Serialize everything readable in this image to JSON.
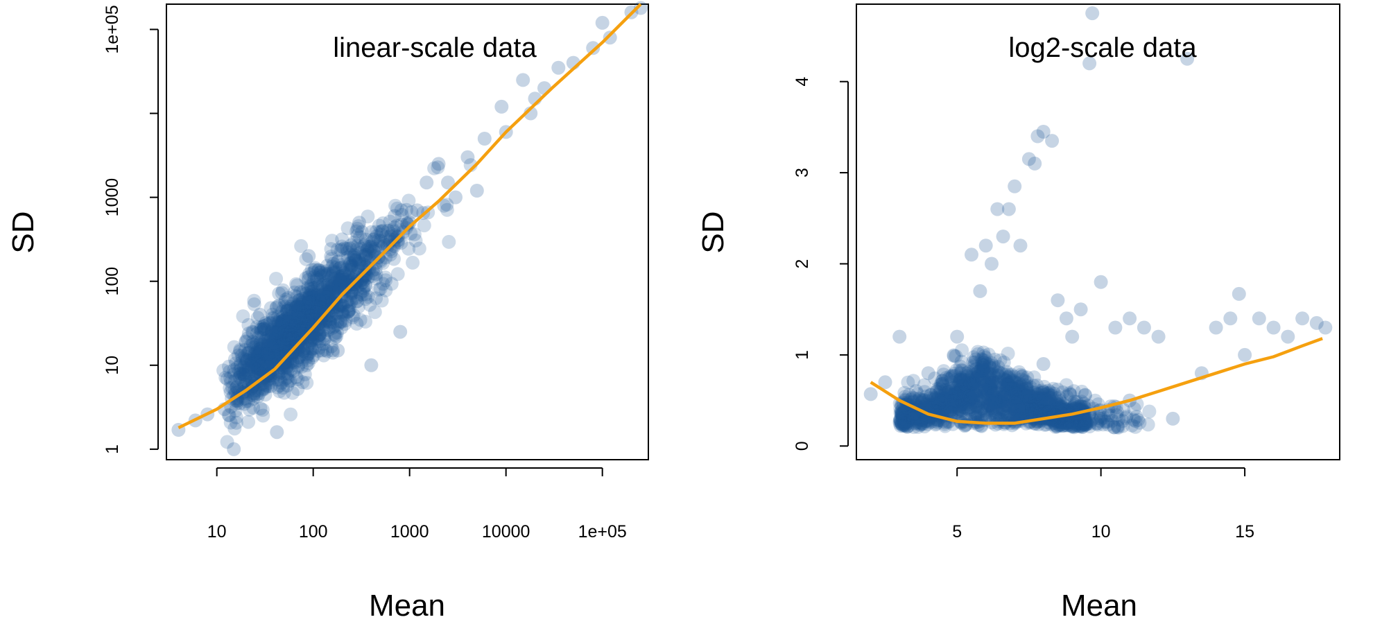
{
  "chart_data": [
    {
      "type": "scatter",
      "title": "linear-scale data",
      "xlabel": "Mean",
      "ylabel": "SD",
      "x_scale": "log10",
      "y_scale": "log10",
      "xlim": [
        3,
        300000
      ],
      "ylim": [
        0.75,
        200000
      ],
      "x_ticks": [
        {
          "value": 10,
          "label": "10"
        },
        {
          "value": 100,
          "label": "100"
        },
        {
          "value": 1000,
          "label": "1000"
        },
        {
          "value": 10000,
          "label": "10000"
        },
        {
          "value": 100000,
          "label": "1e+05"
        }
      ],
      "y_ticks": [
        {
          "value": 1,
          "label": "1"
        },
        {
          "value": 10,
          "label": "10"
        },
        {
          "value": 100,
          "label": "100"
        },
        {
          "value": 1000,
          "label": "1000"
        },
        {
          "value": 10000,
          "label": ""
        },
        {
          "value": 100000,
          "label": "1e+05"
        }
      ],
      "grid": false,
      "point_color": "#1a5594",
      "trend_color": "#f5a00f",
      "points": [
        [
          4,
          1.7
        ],
        [
          6,
          2.2
        ],
        [
          8,
          2.6
        ],
        [
          12,
          3
        ],
        [
          15,
          1
        ],
        [
          16,
          3.5
        ],
        [
          20,
          4
        ],
        [
          25,
          5
        ],
        [
          28,
          40
        ],
        [
          30,
          6
        ],
        [
          35,
          8
        ],
        [
          40,
          10
        ],
        [
          42,
          1.6
        ],
        [
          50,
          12
        ],
        [
          55,
          25
        ],
        [
          60,
          15
        ],
        [
          70,
          18
        ],
        [
          80,
          30
        ],
        [
          90,
          200
        ],
        [
          100,
          25
        ],
        [
          120,
          40
        ],
        [
          150,
          60
        ],
        [
          180,
          15
        ],
        [
          200,
          80
        ],
        [
          250,
          100
        ],
        [
          300,
          500
        ],
        [
          350,
          150
        ],
        [
          400,
          10
        ],
        [
          500,
          300
        ],
        [
          600,
          400
        ],
        [
          700,
          600
        ],
        [
          800,
          25
        ],
        [
          1000,
          500
        ],
        [
          1200,
          700
        ],
        [
          1500,
          1500
        ],
        [
          2000,
          2500
        ],
        [
          2500,
          1500
        ],
        [
          3000,
          1000
        ],
        [
          4000,
          3000
        ],
        [
          5000,
          1200
        ],
        [
          6000,
          5000
        ],
        [
          9000,
          12000
        ],
        [
          10000,
          6000
        ],
        [
          15000,
          25000
        ],
        [
          18000,
          10000
        ],
        [
          20000,
          15000
        ],
        [
          25000,
          20000
        ],
        [
          35000,
          35000
        ],
        [
          50000,
          40000
        ],
        [
          80000,
          60000
        ],
        [
          100000,
          120000
        ],
        [
          120000,
          80000
        ],
        [
          200000,
          160000
        ],
        [
          250000,
          180000
        ]
      ],
      "trend": [
        [
          4,
          1.8
        ],
        [
          10,
          3
        ],
        [
          20,
          5
        ],
        [
          40,
          9
        ],
        [
          70,
          18
        ],
        [
          100,
          28
        ],
        [
          200,
          70
        ],
        [
          500,
          200
        ],
        [
          1000,
          450
        ],
        [
          2000,
          900
        ],
        [
          5000,
          2500
        ],
        [
          10000,
          6000
        ],
        [
          30000,
          20000
        ],
        [
          100000,
          70000
        ],
        [
          250000,
          200000
        ]
      ]
    },
    {
      "type": "scatter",
      "title": "log2-scale data",
      "xlabel": "Mean",
      "ylabel": "SD",
      "x_scale": "linear",
      "y_scale": "linear",
      "xlim": [
        1.5,
        18.3
      ],
      "ylim": [
        -0.15,
        4.85
      ],
      "x_ticks": [
        {
          "value": 5,
          "label": "5"
        },
        {
          "value": 10,
          "label": "10"
        },
        {
          "value": 15,
          "label": "15"
        }
      ],
      "y_ticks": [
        {
          "value": 0,
          "label": "0"
        },
        {
          "value": 1,
          "label": "1"
        },
        {
          "value": 2,
          "label": "2"
        },
        {
          "value": 3,
          "label": "3"
        },
        {
          "value": 4,
          "label": "4"
        }
      ],
      "grid": false,
      "point_color": "#1a5594",
      "trend_color": "#f5a00f",
      "points": [
        [
          2,
          0.57
        ],
        [
          2.5,
          0.7
        ],
        [
          3,
          1.2
        ],
        [
          3.2,
          0.5
        ],
        [
          4,
          0.8
        ],
        [
          5,
          1.2
        ],
        [
          5.5,
          2.1
        ],
        [
          5.8,
          1.7
        ],
        [
          6,
          2.2
        ],
        [
          6.2,
          2.0
        ],
        [
          6.4,
          2.6
        ],
        [
          6.6,
          2.3
        ],
        [
          6.8,
          2.6
        ],
        [
          7,
          2.85
        ],
        [
          7.2,
          2.2
        ],
        [
          7.5,
          3.15
        ],
        [
          7.7,
          3.1
        ],
        [
          7.8,
          3.4
        ],
        [
          8,
          3.45
        ],
        [
          8.3,
          3.35
        ],
        [
          8.5,
          1.6
        ],
        [
          8.8,
          1.4
        ],
        [
          9,
          1.2
        ],
        [
          9.3,
          1.5
        ],
        [
          9.6,
          4.2
        ],
        [
          9.7,
          4.75
        ],
        [
          10,
          1.8
        ],
        [
          10.5,
          1.3
        ],
        [
          11,
          1.4
        ],
        [
          11.5,
          1.3
        ],
        [
          12,
          1.2
        ],
        [
          12.5,
          0.3
        ],
        [
          13,
          4.25
        ],
        [
          13.5,
          0.8
        ],
        [
          14,
          1.3
        ],
        [
          14.5,
          1.4
        ],
        [
          14.8,
          1.67
        ],
        [
          15,
          1.0
        ],
        [
          15.5,
          1.4
        ],
        [
          16,
          1.3
        ],
        [
          16.5,
          1.2
        ],
        [
          17,
          1.4
        ],
        [
          17.5,
          1.35
        ],
        [
          17.8,
          1.3
        ],
        [
          6.5,
          0.3
        ],
        [
          7,
          0.7
        ],
        [
          8,
          0.9
        ],
        [
          9,
          0.4
        ],
        [
          10,
          0.3
        ],
        [
          11,
          0.5
        ]
      ],
      "trend": [
        [
          2,
          0.7
        ],
        [
          3,
          0.5
        ],
        [
          4,
          0.35
        ],
        [
          5,
          0.27
        ],
        [
          6,
          0.25
        ],
        [
          7,
          0.25
        ],
        [
          8,
          0.3
        ],
        [
          9,
          0.35
        ],
        [
          10,
          0.42
        ],
        [
          11,
          0.5
        ],
        [
          12,
          0.6
        ],
        [
          13,
          0.7
        ],
        [
          14,
          0.8
        ],
        [
          15,
          0.9
        ],
        [
          16,
          0.98
        ],
        [
          17,
          1.1
        ],
        [
          17.7,
          1.18
        ]
      ]
    }
  ]
}
